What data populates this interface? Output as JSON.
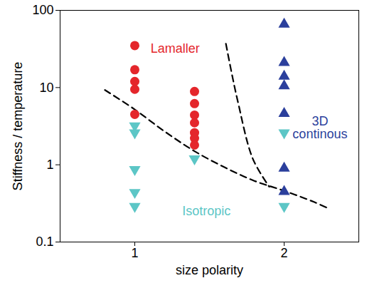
{
  "chart_data": {
    "type": "scatter",
    "x_label": "size polarity",
    "y_label": "Stiffness / temperature",
    "xlim": [
      0.5,
      2.5
    ],
    "xticks": [
      1,
      2
    ],
    "ylim": [
      0.1,
      100
    ],
    "yticks": [
      0.1,
      1,
      10,
      100
    ],
    "log": "y",
    "series": [
      {
        "type": "scatter",
        "color": "#e4262b",
        "marker": "circle",
        "x": [
          1,
          1,
          1,
          1,
          1,
          1.4,
          1.4,
          1.4,
          1.4,
          1.4,
          1.4,
          1.4
        ],
        "values": [
          35,
          17,
          12,
          9.5,
          4.5,
          8.9,
          6.2,
          4.4,
          3.5,
          2.6,
          2.2,
          1.8
        ]
      },
      {
        "type": "scatter",
        "color": "#5cc6c6",
        "marker": "triangle-down",
        "x": [
          1,
          1,
          1,
          1,
          1,
          1.4,
          2,
          2
        ],
        "values": [
          3.2,
          2.6,
          0.87,
          0.44,
          0.29,
          1.2,
          2.6,
          0.29
        ]
      },
      {
        "type": "scatter",
        "color": "#2b3f9c",
        "marker": "triangle-up",
        "x": [
          2,
          2,
          2,
          2,
          2,
          2,
          2
        ],
        "values": [
          66,
          21,
          14,
          10.5,
          4.6,
          0.9,
          0.45
        ]
      },
      {
        "type": "line",
        "color": "#000000",
        "line_style": "dashed",
        "x": [
          0.8,
          1,
          1.2,
          1.4,
          1.6,
          1.8,
          2,
          2.2,
          2.3
        ],
        "values": [
          9.3,
          5.2,
          2.7,
          1.5,
          0.93,
          0.62,
          0.46,
          0.33,
          0.27
        ]
      },
      {
        "type": "line",
        "color": "#000000",
        "line_style": "dashed",
        "x": [
          1.61,
          1.65,
          1.69,
          1.79,
          1.9
        ],
        "values": [
          37,
          15,
          6.6,
          1.2,
          0.52
        ]
      }
    ],
    "annotations": [
      {
        "text": "Lamaller",
        "x": 1.27,
        "y": 32,
        "color": "#e4262b"
      },
      {
        "text": "Isotropic",
        "x": 1.48,
        "y": 0.25,
        "color": "#5cc6c6"
      },
      {
        "text": "3D continous",
        "x": 2.24,
        "y": 3,
        "color": "#2b3f9c"
      }
    ]
  }
}
